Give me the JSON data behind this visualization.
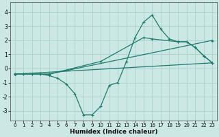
{
  "xlabel": "Humidex (Indice chaleur)",
  "bg_color": "#cce8e5",
  "grid_color": "#aacfcc",
  "line_color": "#1e7a6a",
  "xlim": [
    -0.5,
    23.5
  ],
  "ylim": [
    -3.7,
    4.7
  ],
  "xticks": [
    0,
    1,
    2,
    3,
    4,
    5,
    6,
    7,
    8,
    9,
    10,
    11,
    12,
    13,
    14,
    15,
    16,
    17,
    18,
    19,
    20,
    21,
    22,
    23
  ],
  "yticks": [
    -3,
    -2,
    -1,
    0,
    1,
    2,
    3,
    4
  ],
  "series1_x": [
    0,
    1,
    2,
    3,
    4,
    5,
    6,
    7,
    8,
    9,
    10,
    11,
    12,
    13,
    14,
    15,
    16,
    17,
    18,
    19,
    20,
    21,
    22,
    23
  ],
  "series1_y": [
    -0.4,
    -0.4,
    -0.4,
    -0.4,
    -0.5,
    -0.7,
    -1.1,
    -1.8,
    -3.3,
    -3.3,
    -2.7,
    -1.2,
    -1.0,
    0.5,
    2.2,
    3.3,
    3.8,
    2.8,
    2.1,
    1.9,
    1.9,
    1.5,
    0.9,
    0.4
  ],
  "series2_x": [
    0,
    1,
    2,
    3,
    4,
    10,
    15,
    16,
    19,
    20,
    21,
    22,
    23
  ],
  "series2_y": [
    -0.4,
    -0.4,
    -0.4,
    -0.4,
    -0.4,
    0.5,
    2.2,
    2.1,
    1.9,
    1.9,
    1.5,
    0.9,
    0.4
  ],
  "series3_x": [
    0,
    4,
    23
  ],
  "series3_y": [
    -0.4,
    -0.4,
    2.0
  ],
  "series4_x": [
    0,
    23
  ],
  "series4_y": [
    -0.4,
    0.4
  ]
}
